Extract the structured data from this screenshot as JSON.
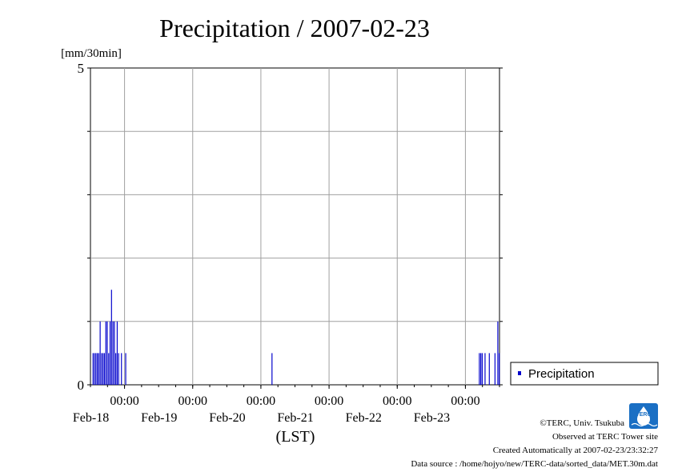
{
  "chart_data": {
    "type": "bar",
    "title": "Precipitation / 2007-02-23",
    "ylabel": "[mm/30min]",
    "xlabel": "(LST)",
    "ylim": [
      0,
      5
    ],
    "y_tick_labels": [
      "0",
      "5"
    ],
    "y_gridlines": [
      0,
      1,
      2,
      3,
      4,
      5
    ],
    "x_range": [
      "2007-02-17 12:00",
      "2007-02-23 12:00"
    ],
    "x_ticks": [
      {
        "time": "2007-02-18 00:00",
        "label": "00:00",
        "date": "Feb-18"
      },
      {
        "time": "2007-02-19 00:00",
        "label": "00:00",
        "date": "Feb-19"
      },
      {
        "time": "2007-02-20 00:00",
        "label": "00:00",
        "date": "Feb-20"
      },
      {
        "time": "2007-02-21 00:00",
        "label": "00:00",
        "date": "Feb-21"
      },
      {
        "time": "2007-02-22 00:00",
        "label": "00:00",
        "date": "Feb-22"
      },
      {
        "time": "2007-02-23 00:00",
        "label": "00:00",
        "date": "Feb-23"
      }
    ],
    "grid": true,
    "legend_position": "right",
    "series": [
      {
        "name": "Precipitation",
        "color": "#0000cc",
        "points": [
          {
            "time": "2007-02-17 13:00",
            "value": 0.5
          },
          {
            "time": "2007-02-17 13:30",
            "value": 0.5
          },
          {
            "time": "2007-02-17 14:00",
            "value": 0.5
          },
          {
            "time": "2007-02-17 14:30",
            "value": 0.5
          },
          {
            "time": "2007-02-17 15:00",
            "value": 0.5
          },
          {
            "time": "2007-02-17 15:30",
            "value": 1.0
          },
          {
            "time": "2007-02-17 16:00",
            "value": 0.5
          },
          {
            "time": "2007-02-17 16:30",
            "value": 0.5
          },
          {
            "time": "2007-02-17 17:00",
            "value": 0.5
          },
          {
            "time": "2007-02-17 17:30",
            "value": 1.0
          },
          {
            "time": "2007-02-17 18:00",
            "value": 1.0
          },
          {
            "time": "2007-02-17 18:30",
            "value": 0.5
          },
          {
            "time": "2007-02-17 19:00",
            "value": 1.0
          },
          {
            "time": "2007-02-17 19:30",
            "value": 1.5
          },
          {
            "time": "2007-02-17 20:00",
            "value": 1.0
          },
          {
            "time": "2007-02-17 20:30",
            "value": 1.0
          },
          {
            "time": "2007-02-17 21:00",
            "value": 0.5
          },
          {
            "time": "2007-02-17 21:30",
            "value": 1.0
          },
          {
            "time": "2007-02-17 22:00",
            "value": 0.5
          },
          {
            "time": "2007-02-17 23:00",
            "value": 0.5
          },
          {
            "time": "2007-02-18 00:30",
            "value": 0.5
          },
          {
            "time": "2007-02-20 04:00",
            "value": 0.5
          },
          {
            "time": "2007-02-23 05:00",
            "value": 0.5
          },
          {
            "time": "2007-02-23 05:30",
            "value": 0.5
          },
          {
            "time": "2007-02-23 06:00",
            "value": 0.5
          },
          {
            "time": "2007-02-23 07:00",
            "value": 0.5
          },
          {
            "time": "2007-02-23 08:30",
            "value": 0.5
          },
          {
            "time": "2007-02-23 10:30",
            "value": 0.5
          },
          {
            "time": "2007-02-23 11:30",
            "value": 1.0
          },
          {
            "time": "2007-02-23 12:00",
            "value": 0.5
          }
        ]
      }
    ]
  },
  "footer": {
    "copyright": "©TERC, Univ. Tsukuba",
    "site": "Observed at TERC Tower site",
    "created": "Created Automatically at 2007-02-23/23:32:27",
    "source": "Data source : /home/hojyo/new/TERC-data/sorted_data/MET.30m.dat"
  },
  "logo": {
    "text": "TERC",
    "color": "#1a6fc4"
  }
}
